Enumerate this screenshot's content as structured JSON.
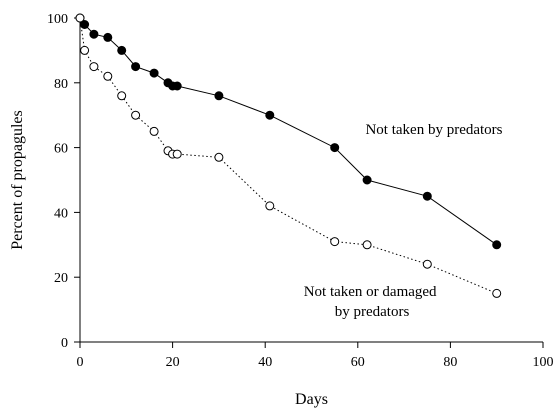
{
  "chart_data": {
    "type": "line",
    "title": "",
    "xlabel": "Days",
    "ylabel": "Percent of propagules",
    "xlim": [
      0,
      100
    ],
    "ylim": [
      0,
      100
    ],
    "xticks": [
      "0",
      "20",
      "40",
      "60",
      "80",
      "100"
    ],
    "yticks": [
      "0",
      "20",
      "40",
      "60",
      "80",
      "100"
    ],
    "grid": false,
    "legend": "none",
    "annotations": [
      {
        "lines": [
          "Not taken by predators"
        ],
        "series": "filled"
      },
      {
        "lines": [
          "Not taken or damaged",
          "by predators"
        ],
        "series": "open"
      }
    ],
    "series": [
      {
        "name": "Not taken by predators",
        "marker": "filled-circle",
        "line_style": "solid",
        "color": "#000000",
        "points": [
          [
            0,
            100
          ],
          [
            1,
            98
          ],
          [
            3,
            95
          ],
          [
            6,
            94
          ],
          [
            9,
            90
          ],
          [
            12,
            85
          ],
          [
            16,
            83
          ],
          [
            19,
            80
          ],
          [
            20,
            79
          ],
          [
            21,
            79
          ],
          [
            30,
            76
          ],
          [
            41,
            70
          ],
          [
            55,
            60
          ],
          [
            62,
            50
          ],
          [
            75,
            45
          ],
          [
            90,
            30
          ]
        ]
      },
      {
        "name": "Not taken or damaged by predators",
        "marker": "open-circle",
        "line_style": "dotted",
        "color": "#000000",
        "points": [
          [
            0,
            100
          ],
          [
            1,
            90
          ],
          [
            3,
            85
          ],
          [
            6,
            82
          ],
          [
            9,
            76
          ],
          [
            12,
            70
          ],
          [
            16,
            65
          ],
          [
            19,
            59
          ],
          [
            20,
            58
          ],
          [
            21,
            58
          ],
          [
            30,
            57
          ],
          [
            41,
            42
          ],
          [
            55,
            31
          ],
          [
            62,
            30
          ],
          [
            75,
            24
          ],
          [
            90,
            15
          ]
        ]
      }
    ]
  }
}
